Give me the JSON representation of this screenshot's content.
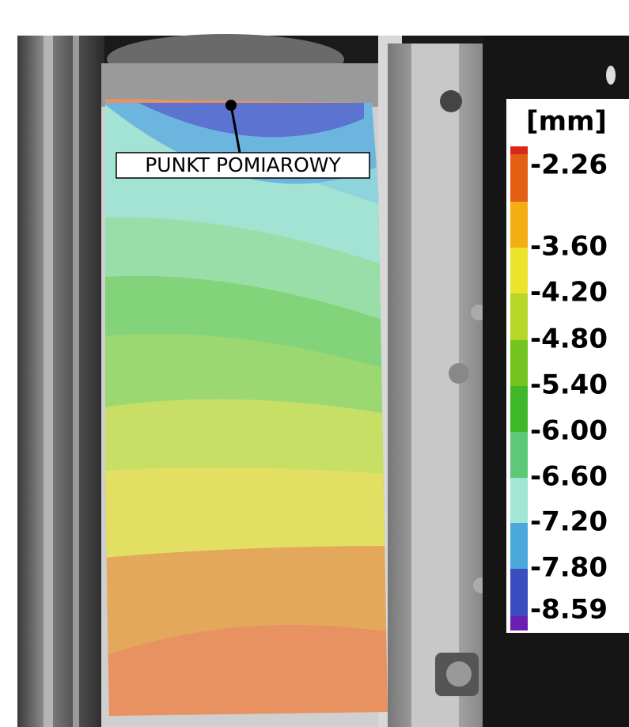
{
  "annotation": "PUNKT POMIAROWY",
  "colorbar": {
    "unit": "[mm]",
    "labels": [
      "-2.26",
      "-3.60",
      "-4.20",
      "-4.80",
      "-5.40",
      "-6.00",
      "-6.60",
      "-7.20",
      "-7.80",
      "-8.59"
    ]
  }
}
